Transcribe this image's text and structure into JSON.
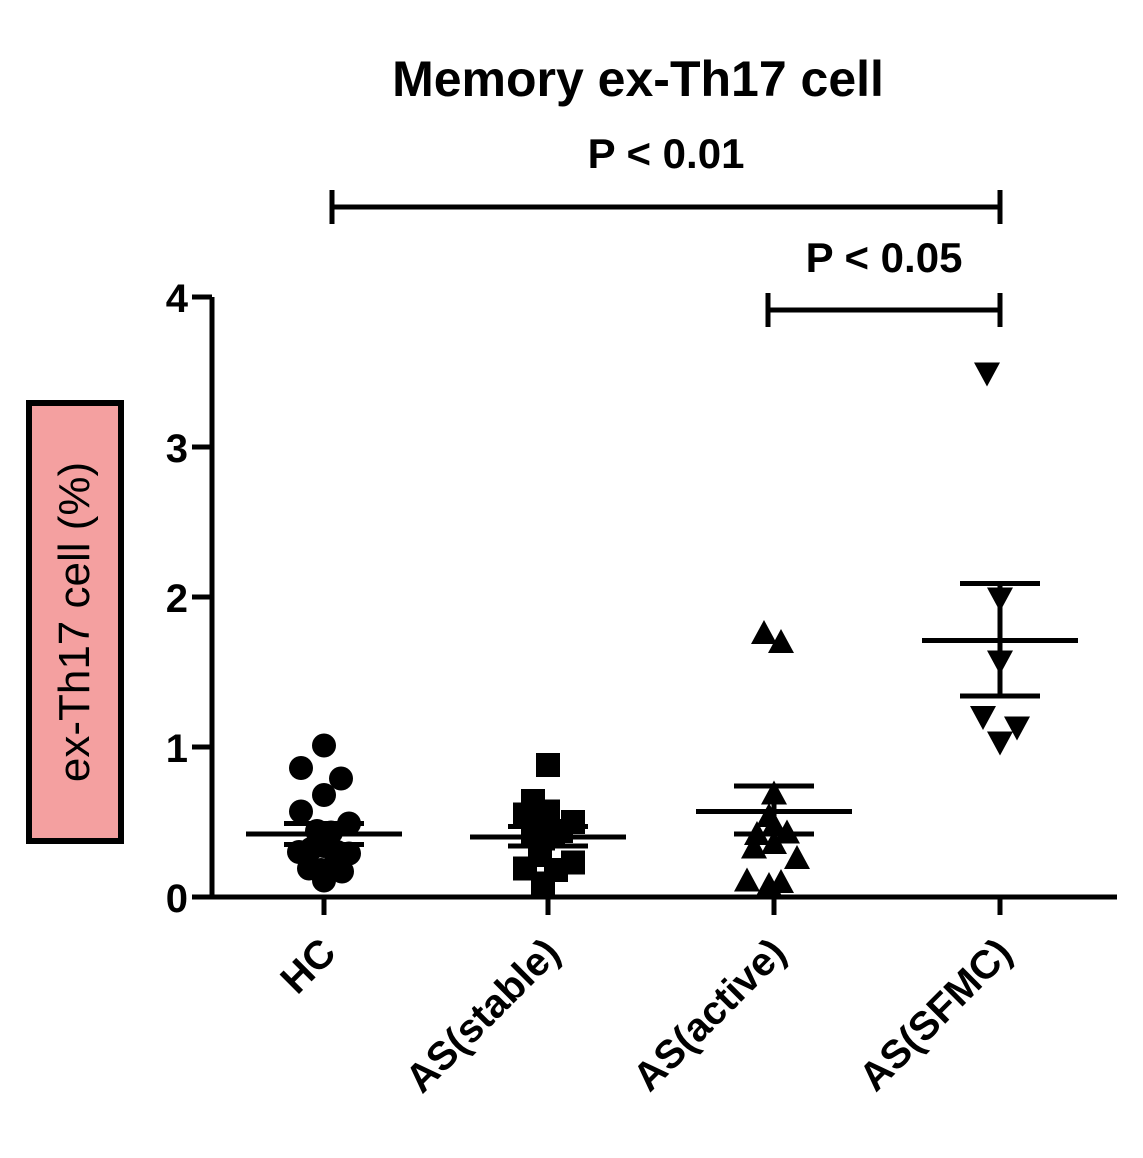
{
  "chart_data": {
    "type": "scatter",
    "title": "Memory ex-Th17 cell",
    "ylabel": "ex-Th17 cell (%)",
    "xlabel": "",
    "ylim": [
      0,
      4
    ],
    "yticks": [
      "0",
      "1",
      "2",
      "3",
      "4"
    ],
    "categories": [
      "HC",
      "AS(stable)",
      "AS(active)",
      "AS(SFMC)"
    ],
    "grid": false,
    "legend": "none",
    "series": [
      {
        "category": "HC",
        "marker": "circle",
        "mean": 0.42,
        "sem_low": 0.35,
        "sem_high": 0.49,
        "points": [
          {
            "x": -0.23,
            "y": 0.86
          },
          {
            "x": 0.0,
            "y": 1.01
          },
          {
            "x": 0.17,
            "y": 0.79
          },
          {
            "x": 0.0,
            "y": 0.68
          },
          {
            "x": -0.23,
            "y": 0.57
          },
          {
            "x": -0.07,
            "y": 0.44
          },
          {
            "x": 0.07,
            "y": 0.43
          },
          {
            "x": 0.25,
            "y": 0.49
          },
          {
            "x": -0.25,
            "y": 0.3
          },
          {
            "x": -0.13,
            "y": 0.32
          },
          {
            "x": 0.0,
            "y": 0.34
          },
          {
            "x": 0.13,
            "y": 0.3
          },
          {
            "x": 0.25,
            "y": 0.29
          },
          {
            "x": -0.15,
            "y": 0.19
          },
          {
            "x": -0.03,
            "y": 0.18
          },
          {
            "x": 0.1,
            "y": 0.21
          },
          {
            "x": 0.18,
            "y": 0.17
          },
          {
            "x": 0.0,
            "y": 0.11
          }
        ]
      },
      {
        "category": "AS(stable)",
        "marker": "square",
        "mean": 0.4,
        "sem_low": 0.34,
        "sem_high": 0.47,
        "points": [
          {
            "x": 0.0,
            "y": 0.88
          },
          {
            "x": -0.15,
            "y": 0.64
          },
          {
            "x": -0.23,
            "y": 0.55
          },
          {
            "x": 0.0,
            "y": 0.57
          },
          {
            "x": 0.25,
            "y": 0.5
          },
          {
            "x": -0.15,
            "y": 0.43
          },
          {
            "x": -0.05,
            "y": 0.39
          },
          {
            "x": 0.05,
            "y": 0.41
          },
          {
            "x": 0.13,
            "y": 0.44
          },
          {
            "x": -0.23,
            "y": 0.19
          },
          {
            "x": 0.25,
            "y": 0.23
          },
          {
            "x": 0.08,
            "y": 0.18
          },
          {
            "x": -0.05,
            "y": 0.09
          },
          {
            "x": -0.08,
            "y": 0.28
          }
        ]
      },
      {
        "category": "AS(active)",
        "marker": "triangle-up",
        "mean": 0.57,
        "sem_low": 0.42,
        "sem_high": 0.74,
        "points": [
          {
            "x": -0.1,
            "y": 1.76
          },
          {
            "x": 0.07,
            "y": 1.7
          },
          {
            "x": 0.0,
            "y": 0.69
          },
          {
            "x": -0.05,
            "y": 0.54
          },
          {
            "x": 0.0,
            "y": 0.48
          },
          {
            "x": -0.17,
            "y": 0.42
          },
          {
            "x": 0.13,
            "y": 0.43
          },
          {
            "x": -0.2,
            "y": 0.33
          },
          {
            "x": 0.0,
            "y": 0.36
          },
          {
            "x": 0.23,
            "y": 0.26
          },
          {
            "x": -0.27,
            "y": 0.11
          },
          {
            "x": -0.05,
            "y": 0.08
          },
          {
            "x": 0.07,
            "y": 0.1
          }
        ]
      },
      {
        "category": "AS(SFMC)",
        "marker": "triangle-down",
        "mean": 1.71,
        "sem_low": 1.34,
        "sem_high": 2.09,
        "points": [
          {
            "x": -0.13,
            "y": 3.49
          },
          {
            "x": 0.0,
            "y": 1.99
          },
          {
            "x": 0.0,
            "y": 1.57
          },
          {
            "x": -0.17,
            "y": 1.2
          },
          {
            "x": 0.17,
            "y": 1.13
          },
          {
            "x": 0.0,
            "y": 1.03
          }
        ]
      }
    ],
    "annotations": [
      {
        "text": "P < 0.01",
        "from": "HC",
        "to": "AS(SFMC)"
      },
      {
        "text": "P < 0.05",
        "from": "AS(active)",
        "to": "AS(SFMC)"
      }
    ]
  }
}
